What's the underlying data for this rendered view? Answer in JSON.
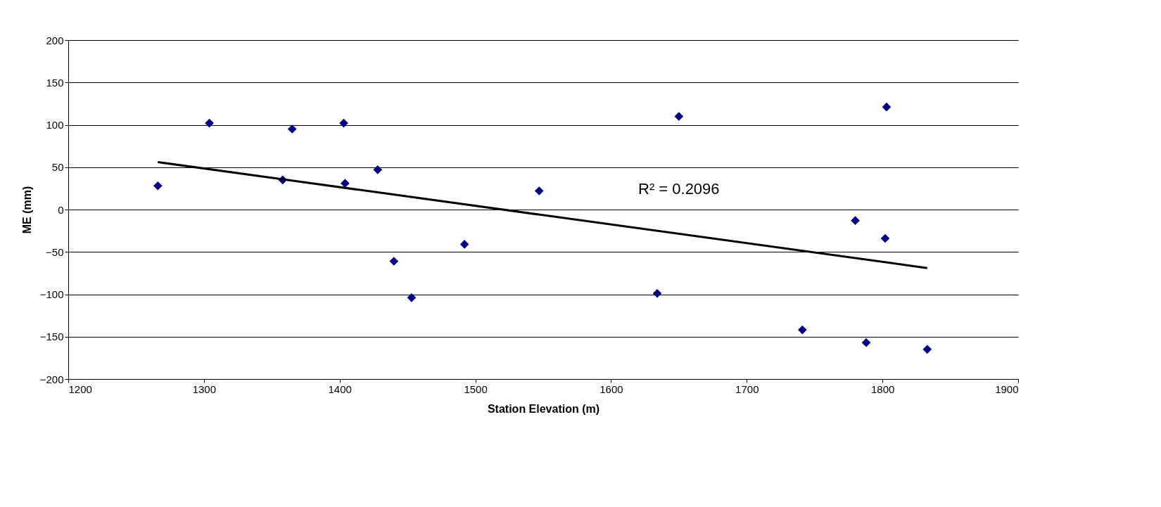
{
  "chart_data": {
    "type": "scatter",
    "xlabel": "Station Elevation (m)",
    "ylabel": "ME (mm)",
    "xlim": [
      1200,
      1900
    ],
    "xticks": [
      1200,
      1300,
      1400,
      1500,
      1600,
      1700,
      1800,
      1900
    ],
    "ylim": [
      -200,
      200
    ],
    "yticks": [
      -200,
      -150,
      -100,
      -50,
      0,
      50,
      100,
      150,
      200
    ],
    "grid": "y",
    "legend": false,
    "series": [
      {
        "color": "#000080",
        "marker": "diamond",
        "x": [
          1266,
          1304,
          1358,
          1365,
          1403,
          1404,
          1428,
          1440,
          1453,
          1492,
          1547,
          1634,
          1650,
          1741,
          1780,
          1788,
          1803,
          1802,
          1833
        ],
        "values": [
          28,
          102,
          35,
          95,
          102,
          31,
          47,
          -61,
          -104,
          -41,
          22,
          -99,
          110,
          -142,
          -13,
          -157,
          121,
          -34,
          -165
        ]
      },
      {
        "type": "line",
        "color": "#000000",
        "marker": "none",
        "line_style": "solid",
        "x": [
          1266,
          1833
        ],
        "values": [
          56,
          -69
        ]
      }
    ],
    "annotations": [
      "R² = 0.2096"
    ]
  }
}
